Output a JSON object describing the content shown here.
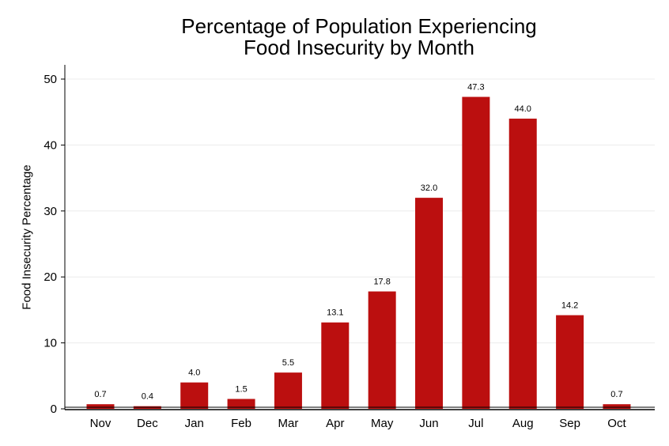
{
  "chart_data": {
    "type": "bar",
    "title": "Percentage of Population Experiencing Food Insecurity by Month",
    "title_lines": [
      "Percentage of Population Experiencing",
      "Food Insecurity by Month"
    ],
    "xlabel": "",
    "ylabel": "Food Insecurity Percentage",
    "categories": [
      "Nov",
      "Dec",
      "Jan",
      "Feb",
      "Mar",
      "Apr",
      "May",
      "Jun",
      "Jul",
      "Aug",
      "Sep",
      "Oct"
    ],
    "values": [
      0.7,
      0.4,
      4.0,
      1.5,
      5.5,
      13.1,
      17.8,
      32.0,
      47.3,
      44.0,
      14.2,
      0.7
    ],
    "data_labels": [
      "0.7",
      "0.4",
      "4.0",
      "1.5",
      "5.5",
      "13.1",
      "17.8",
      "32.0",
      "47.3",
      "44.0",
      "14.2",
      "0.7"
    ],
    "ylim": [
      0,
      52
    ],
    "yticks": [
      0,
      10,
      20,
      30,
      40,
      50
    ],
    "grid": true,
    "bar_color": "#bb0f0f"
  }
}
